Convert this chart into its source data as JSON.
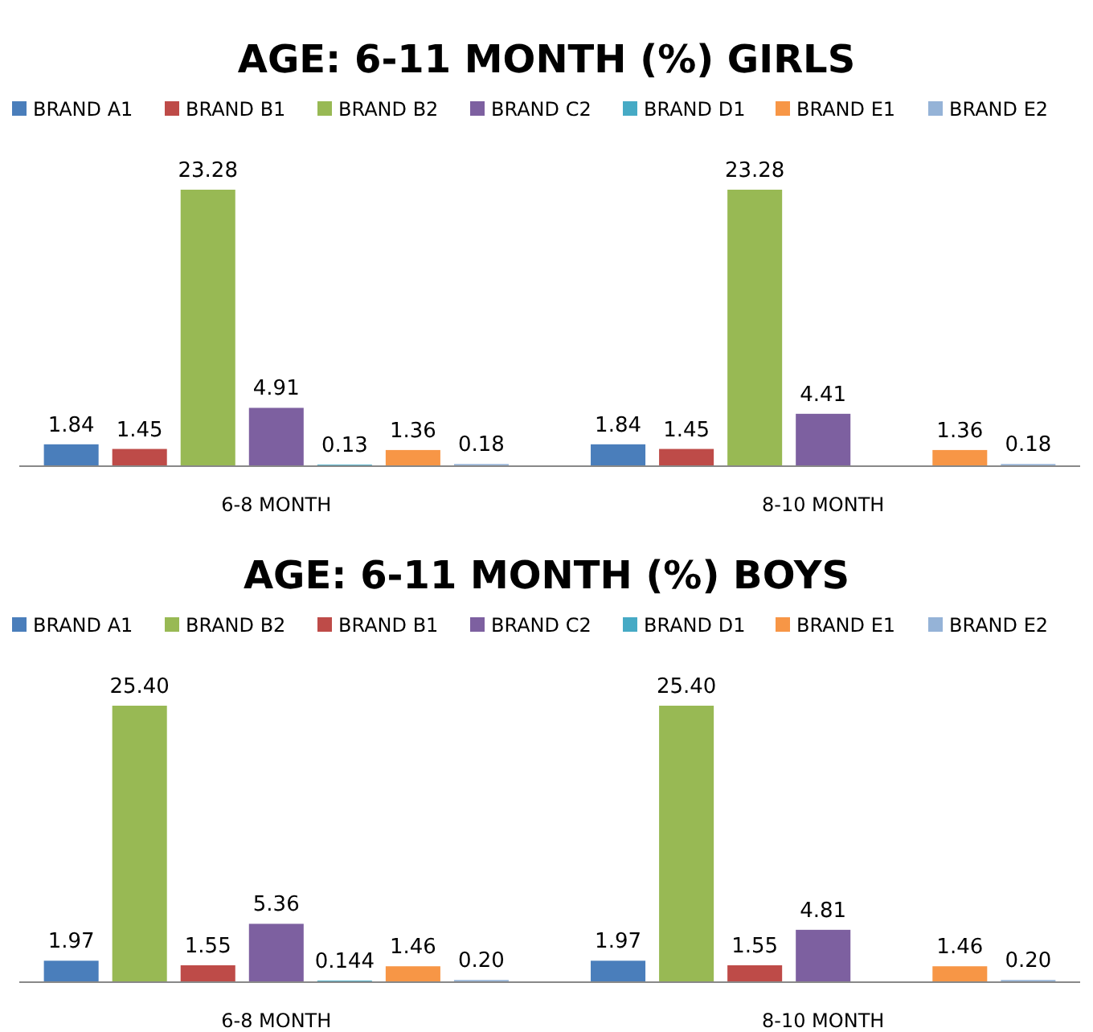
{
  "chart_data": [
    {
      "type": "bar",
      "title": "AGE: 6-11 MONTH (%) GIRLS",
      "categories": [
        "6-8 MONTH",
        "8-10 MONTH"
      ],
      "legend": "top",
      "series": [
        {
          "name": "BRAND A1",
          "color": "#4a7ebb",
          "values": [
            1.84,
            1.84
          ],
          "value_labels": [
            "1.84",
            "1.84"
          ]
        },
        {
          "name": "BRAND B1",
          "color": "#be4b48",
          "values": [
            1.45,
            1.45
          ],
          "value_labels": [
            "1.45",
            "1.45"
          ]
        },
        {
          "name": "BRAND B2",
          "color": "#98b954",
          "values": [
            23.28,
            23.28
          ],
          "value_labels": [
            "23.28",
            "23.28"
          ]
        },
        {
          "name": "BRAND C2",
          "color": "#7d60a0",
          "values": [
            4.91,
            4.41
          ],
          "value_labels": [
            "4.91",
            "4.41"
          ]
        },
        {
          "name": "BRAND D1",
          "color": "#46aac5",
          "values": [
            0.13,
            null
          ],
          "value_labels": [
            "0.13",
            null
          ]
        },
        {
          "name": "BRAND E1",
          "color": "#f79646",
          "values": [
            1.36,
            1.36
          ],
          "value_labels": [
            "1.36",
            "1.36"
          ]
        },
        {
          "name": "BRAND E2",
          "color": "#95b3d7",
          "values": [
            0.18,
            0.18
          ],
          "value_labels": [
            "0.18",
            "0.18"
          ]
        }
      ]
    },
    {
      "type": "bar",
      "title": "AGE: 6-11 MONTH (%) BOYS",
      "categories": [
        "6-8 MONTH",
        "8-10 MONTH"
      ],
      "legend": "top",
      "series": [
        {
          "name": "BRAND A1",
          "color": "#4a7ebb",
          "values": [
            1.97,
            1.97
          ],
          "value_labels": [
            "1.97",
            "1.97"
          ]
        },
        {
          "name": "BRAND B2",
          "color": "#98b954",
          "values": [
            25.4,
            25.4
          ],
          "value_labels": [
            "25.40",
            "25.40"
          ]
        },
        {
          "name": "BRAND B1",
          "color": "#be4b48",
          "values": [
            1.55,
            1.55
          ],
          "value_labels": [
            "1.55",
            "1.55"
          ]
        },
        {
          "name": "BRAND C2",
          "color": "#7d60a0",
          "values": [
            5.36,
            4.81
          ],
          "value_labels": [
            "5.36",
            "4.81"
          ]
        },
        {
          "name": "BRAND D1",
          "color": "#46aac5",
          "values": [
            0.144,
            null
          ],
          "value_labels": [
            "0.144",
            null
          ]
        },
        {
          "name": "BRAND E1",
          "color": "#f79646",
          "values": [
            1.46,
            1.46
          ],
          "value_labels": [
            "1.46",
            "1.46"
          ]
        },
        {
          "name": "BRAND E2",
          "color": "#95b3d7",
          "values": [
            0.2,
            0.2
          ],
          "value_labels": [
            "0.20",
            "0.20"
          ]
        }
      ]
    }
  ]
}
